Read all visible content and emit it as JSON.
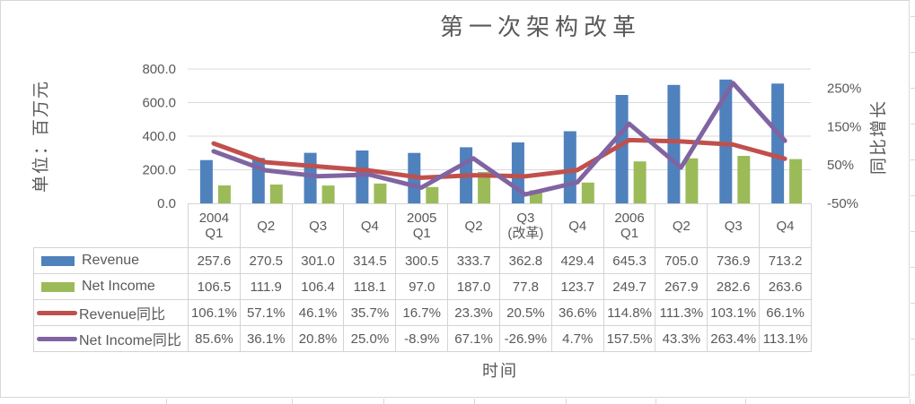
{
  "chart_data": {
    "type": "combo_bar_line",
    "title": "第一次架构改革",
    "categories": [
      "2004\nQ1",
      "Q2",
      "Q3",
      "Q4",
      "2005\nQ1",
      "Q2",
      "Q3\n(改革)",
      "Q4",
      "2006\nQ1",
      "Q2",
      "Q3",
      "Q4"
    ],
    "series": [
      {
        "name": "Revenue",
        "type": "bar",
        "axis": "primary",
        "color": "#4F81BD",
        "values": [
          257.6,
          270.5,
          301.0,
          314.5,
          300.5,
          333.7,
          362.8,
          429.4,
          645.3,
          705.0,
          736.9,
          713.2
        ]
      },
      {
        "name": "Net Income",
        "type": "bar",
        "axis": "primary",
        "color": "#9BBB59",
        "values": [
          106.5,
          111.9,
          106.4,
          118.1,
          97.0,
          187.0,
          77.8,
          123.7,
          249.7,
          267.9,
          282.6,
          263.6
        ]
      },
      {
        "name": "Revenue同比",
        "type": "line",
        "axis": "secondary",
        "color": "#C0504D",
        "values": [
          106.1,
          57.1,
          46.1,
          35.7,
          16.7,
          23.3,
          20.5,
          36.6,
          114.8,
          111.3,
          103.1,
          66.1
        ]
      },
      {
        "name": "Net Income同比",
        "type": "line",
        "axis": "secondary",
        "color": "#8064A2",
        "values": [
          85.6,
          36.1,
          20.8,
          25.0,
          -8.9,
          67.1,
          -26.9,
          4.7,
          157.5,
          43.3,
          263.4,
          113.1
        ]
      }
    ],
    "primary_axis": {
      "title": "单位：百万元",
      "min": 0,
      "max": 800,
      "ticks": [
        {
          "v": 800,
          "label": "800.0"
        },
        {
          "v": 600,
          "label": "600.0"
        },
        {
          "v": 400,
          "label": "400.0"
        },
        {
          "v": 200,
          "label": "200.0"
        },
        {
          "v": 0,
          "label": "0.0"
        }
      ]
    },
    "secondary_axis": {
      "title": "同比增长",
      "min": -50,
      "max": 300,
      "ticks": [
        {
          "v": 250,
          "label": "250%"
        },
        {
          "v": 150,
          "label": "150%"
        },
        {
          "v": 50,
          "label": "50%"
        },
        {
          "v": -50,
          "label": "-50%"
        }
      ]
    },
    "x_axis": {
      "title": "时间"
    },
    "legend_position": "data-table-left-column",
    "grid": "horizontal"
  },
  "colors": {
    "text": "#595959",
    "gridline": "#D9D9D9",
    "table_border": "#D4D4D4",
    "revenue_bar": "#4F81BD",
    "net_income_bar": "#9BBB59",
    "revenue_yoy_line": "#C0504D",
    "net_income_yoy_line": "#8064A2"
  }
}
